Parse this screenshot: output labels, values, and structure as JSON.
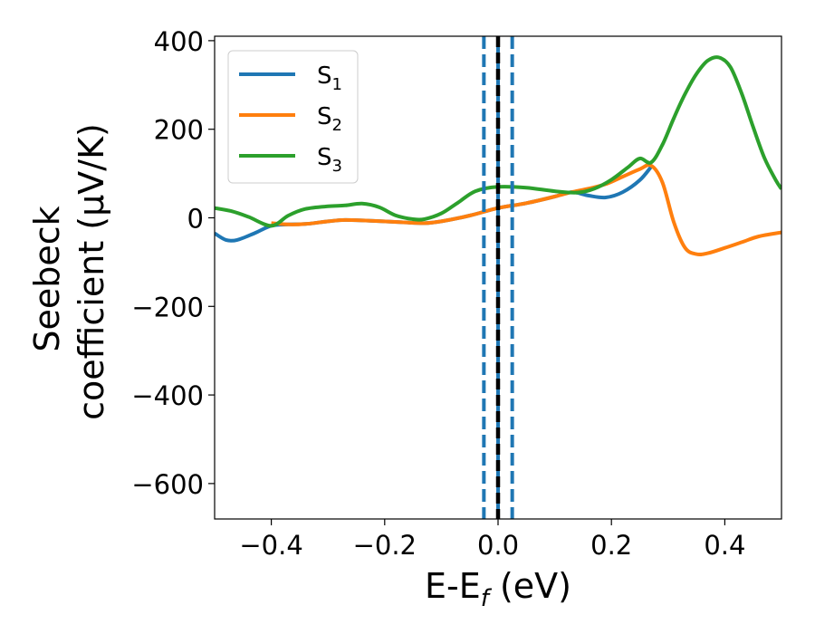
{
  "chart_data": {
    "type": "line",
    "xlabel": {
      "main": "E-E",
      "sub": "f",
      "unit": " (eV)"
    },
    "ylabel": {
      "line1": "Seebeck",
      "line2": "coefficient  (μV/K)"
    },
    "xlim": [
      -0.5,
      0.5
    ],
    "ylim": [
      -680,
      410
    ],
    "xticks": [
      -0.4,
      -0.2,
      0.0,
      0.2,
      0.4
    ],
    "xtick_labels": [
      "−0.4",
      "−0.2",
      "0.0",
      "0.2",
      "0.4"
    ],
    "yticks": [
      -600,
      -400,
      -200,
      0,
      200,
      400
    ],
    "ytick_labels": [
      "−600",
      "−400",
      "−200",
      "0",
      "200",
      "400"
    ],
    "grid": false,
    "legend_position": "top-left",
    "vlines": [
      {
        "x": -0.025,
        "style": "dashed",
        "color": "#1f77b4"
      },
      {
        "x": 0.025,
        "style": "dashed",
        "color": "#1f77b4"
      },
      {
        "x": 0.0,
        "style": "solid",
        "color": "#1f77b4"
      },
      {
        "x": 0.0,
        "style": "dashed",
        "color": "#000000"
      }
    ],
    "series": [
      {
        "name": "S",
        "sub": "1",
        "color": "#1f77b4",
        "points": [
          [
            -0.5,
            -35
          ],
          [
            -0.48,
            -50
          ],
          [
            -0.46,
            -50
          ],
          [
            -0.43,
            -35
          ],
          [
            -0.4,
            -18
          ],
          [
            -0.37,
            -15
          ],
          [
            -0.34,
            -14
          ],
          [
            -0.3,
            -8
          ],
          [
            -0.27,
            -5
          ],
          [
            -0.22,
            -7
          ],
          [
            -0.17,
            -10
          ],
          [
            -0.13,
            -12
          ],
          [
            -0.1,
            -8
          ],
          [
            -0.05,
            5
          ],
          [
            0.0,
            22
          ],
          [
            0.05,
            33
          ],
          [
            0.1,
            48
          ],
          [
            0.13,
            58
          ],
          [
            0.16,
            50
          ],
          [
            0.19,
            46
          ],
          [
            0.22,
            58
          ],
          [
            0.25,
            85
          ],
          [
            0.27,
            115
          ]
        ]
      },
      {
        "name": "S",
        "sub": "2",
        "color": "#ff7f0e",
        "points": [
          [
            -0.4,
            -12
          ],
          [
            -0.37,
            -15
          ],
          [
            -0.34,
            -14
          ],
          [
            -0.3,
            -8
          ],
          [
            -0.27,
            -5
          ],
          [
            -0.22,
            -7
          ],
          [
            -0.17,
            -10
          ],
          [
            -0.13,
            -12
          ],
          [
            -0.1,
            -8
          ],
          [
            -0.05,
            5
          ],
          [
            0.0,
            22
          ],
          [
            0.05,
            33
          ],
          [
            0.1,
            48
          ],
          [
            0.13,
            58
          ],
          [
            0.16,
            66
          ],
          [
            0.19,
            76
          ],
          [
            0.22,
            93
          ],
          [
            0.25,
            110
          ],
          [
            0.27,
            118
          ],
          [
            0.29,
            80
          ],
          [
            0.31,
            -10
          ],
          [
            0.33,
            -68
          ],
          [
            0.35,
            -82
          ],
          [
            0.37,
            -80
          ],
          [
            0.4,
            -68
          ],
          [
            0.43,
            -55
          ],
          [
            0.46,
            -42
          ],
          [
            0.5,
            -33
          ]
        ]
      },
      {
        "name": "S",
        "sub": "3",
        "color": "#2ca02c",
        "points": [
          [
            -0.5,
            22
          ],
          [
            -0.47,
            15
          ],
          [
            -0.44,
            2
          ],
          [
            -0.4,
            -18
          ],
          [
            -0.37,
            5
          ],
          [
            -0.34,
            20
          ],
          [
            -0.3,
            26
          ],
          [
            -0.27,
            28
          ],
          [
            -0.24,
            32
          ],
          [
            -0.21,
            24
          ],
          [
            -0.18,
            5
          ],
          [
            -0.15,
            -3
          ],
          [
            -0.13,
            -3
          ],
          [
            -0.1,
            10
          ],
          [
            -0.07,
            35
          ],
          [
            -0.04,
            60
          ],
          [
            0.0,
            70
          ],
          [
            0.05,
            68
          ],
          [
            0.1,
            60
          ],
          [
            0.14,
            57
          ],
          [
            0.17,
            66
          ],
          [
            0.2,
            86
          ],
          [
            0.23,
            115
          ],
          [
            0.25,
            134
          ],
          [
            0.27,
            125
          ],
          [
            0.29,
            165
          ],
          [
            0.31,
            225
          ],
          [
            0.33,
            280
          ],
          [
            0.35,
            325
          ],
          [
            0.37,
            355
          ],
          [
            0.39,
            362
          ],
          [
            0.41,
            340
          ],
          [
            0.43,
            280
          ],
          [
            0.45,
            205
          ],
          [
            0.47,
            135
          ],
          [
            0.49,
            85
          ],
          [
            0.5,
            65
          ]
        ]
      }
    ]
  }
}
